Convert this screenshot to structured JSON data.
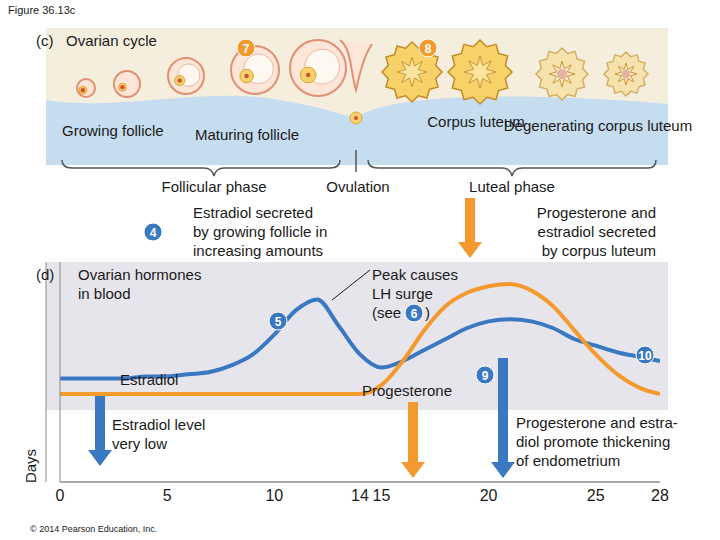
{
  "header": {
    "title": "Figure 36.13c",
    "copyright": "© 2014 Pearson Education, Inc."
  },
  "ovarian_cycle": {
    "panel_label": "(c)",
    "title": "Ovarian cycle",
    "stages": [
      "Growing follicle",
      "Maturing follicle",
      "Corpus luteum",
      "Degenerating corpus luteum"
    ],
    "phases": [
      "Follicular phase",
      "Ovulation",
      "Luteal phase"
    ],
    "steps": [
      7,
      8
    ]
  },
  "hormones_panel": {
    "panel_label": "(d)",
    "title": [
      "Ovarian hormones",
      "in blood"
    ],
    "annotations": {
      "estradiol_secreted": {
        "step": 4,
        "text": [
          "Estradiol secreted",
          "by growing follicle in",
          "increasing amounts"
        ]
      },
      "corpus_luteum_secretion": {
        "text": [
          "Progesterone and",
          "estradiol secreted",
          "by corpus luteum"
        ]
      },
      "peak": {
        "step": 5,
        "text": [
          "Peak causes",
          "LH surge"
        ],
        "ref": {
          "prefix": "(see",
          "step": 6,
          "suffix": ")"
        }
      },
      "estradiol_low": {
        "text": [
          "Estradiol level",
          "very low"
        ]
      },
      "endometrium": {
        "text": [
          "Progesterone and estra-",
          "diol promote thickening",
          "of endometrium"
        ]
      }
    },
    "markers": [
      9,
      10
    ]
  },
  "chart_data": {
    "type": "line",
    "x": [
      0,
      1,
      2,
      3,
      4,
      5,
      6,
      7,
      8,
      9,
      10,
      11,
      12,
      13,
      14,
      15,
      16,
      17,
      18,
      19,
      20,
      21,
      22,
      23,
      24,
      25,
      26,
      27,
      28
    ],
    "xlim": [
      0,
      28
    ],
    "xticks": [
      0,
      5,
      10,
      14,
      15,
      20,
      25,
      28
    ],
    "x_label": "Days",
    "ylim": [
      0,
      100
    ],
    "tick_labels": "x",
    "series": [
      {
        "name": "Estradiol",
        "color": "#3a78c2",
        "values": [
          47,
          47,
          47,
          47,
          48,
          48,
          49,
          50,
          53,
          58,
          67,
          78,
          83,
          71,
          58,
          52,
          55,
          60,
          65,
          70,
          73,
          74,
          73,
          70,
          65,
          62,
          59,
          57,
          55
        ]
      },
      {
        "name": "Progesterone",
        "color": "#f39a2e",
        "values": [
          40,
          40,
          40,
          40,
          40,
          40,
          40,
          40,
          40,
          40,
          40,
          40,
          40,
          40,
          40,
          44,
          55,
          69,
          80,
          86,
          89,
          90,
          87,
          80,
          69,
          58,
          49,
          43,
          40
        ]
      }
    ]
  }
}
